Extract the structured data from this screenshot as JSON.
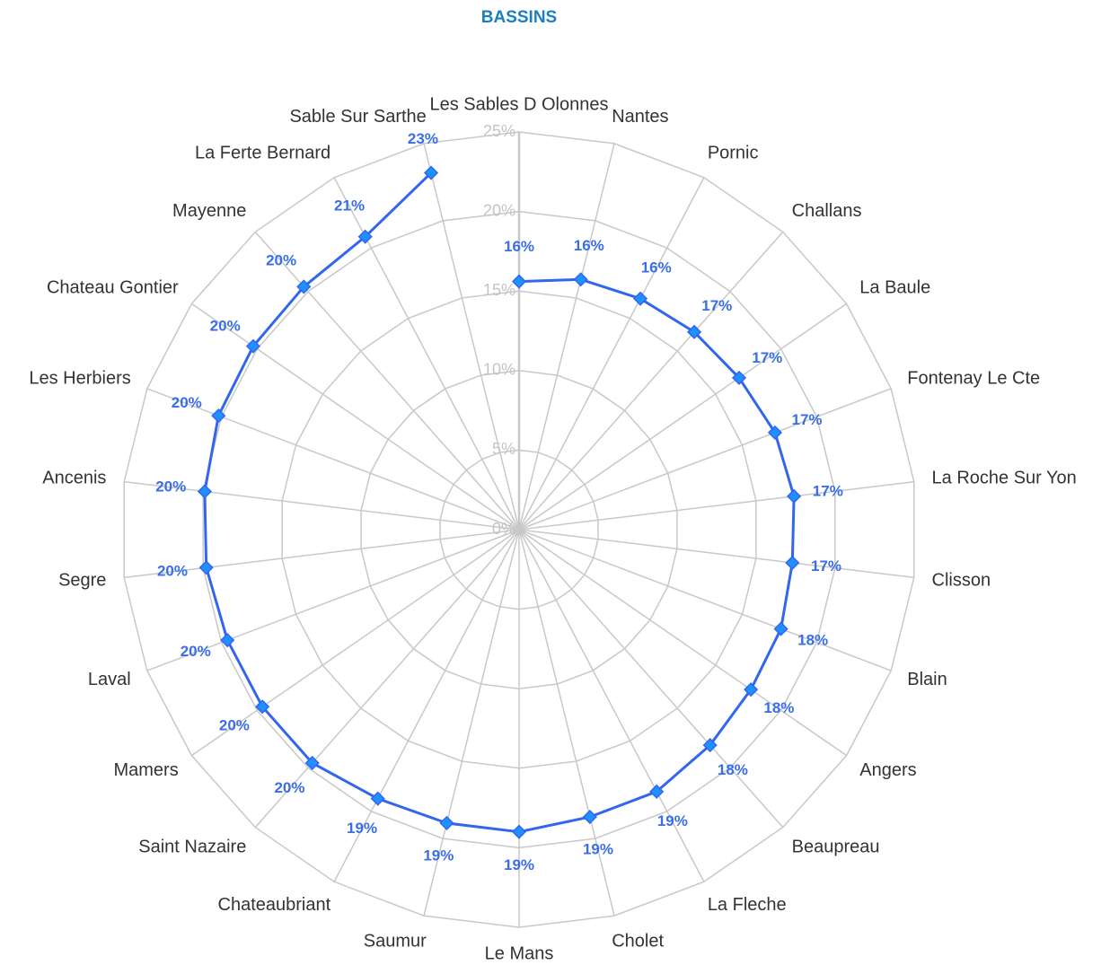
{
  "chart_data": {
    "type": "radar",
    "title": "BASSINS",
    "categories": [
      "Les Sables D Olonnes",
      "Nantes",
      "Pornic",
      "Challans",
      "La Baule",
      "Fontenay Le Cte",
      "La Roche Sur Yon",
      "Clisson",
      "Blain",
      "Angers",
      "Beaupreau",
      "La Fleche",
      "Cholet",
      "Le Mans",
      "Saumur",
      "Chateaubriant",
      "Saint Nazaire",
      "Mamers",
      "Laval",
      "Segre",
      "Ancenis",
      "Les Herbiers",
      "Chateau Gontier",
      "Mayenne",
      "La Ferte Bernard",
      "Sable Sur Sarthe"
    ],
    "series": [
      {
        "color": "#3366ee",
        "values": [
          15.6,
          16.2,
          16.4,
          16.6,
          16.8,
          17.2,
          17.4,
          17.3,
          17.6,
          17.7,
          18.1,
          18.6,
          18.6,
          19.0,
          19.0,
          19.1,
          19.6,
          19.6,
          19.6,
          19.8,
          19.9,
          20.2,
          20.3,
          20.4,
          20.8,
          23.1
        ],
        "value_labels": [
          "16%",
          "16%",
          "16%",
          "17%",
          "17%",
          "17%",
          "17%",
          "17%",
          "18%",
          "18%",
          "18%",
          "19%",
          "19%",
          "19%",
          "19%",
          "19%",
          "20%",
          "20%",
          "20%",
          "20%",
          "20%",
          "20%",
          "20%",
          "20%",
          "21%",
          "23%"
        ]
      }
    ],
    "rlim": [
      0,
      25
    ],
    "rticks": [
      {
        "value": 0,
        "label": "0%"
      },
      {
        "value": 5,
        "label": "5%"
      },
      {
        "value": 10,
        "label": "10%"
      },
      {
        "value": 15,
        "label": "15%"
      },
      {
        "value": 20,
        "label": "20%"
      },
      {
        "value": 25,
        "label": "25%"
      }
    ],
    "grid": true
  }
}
